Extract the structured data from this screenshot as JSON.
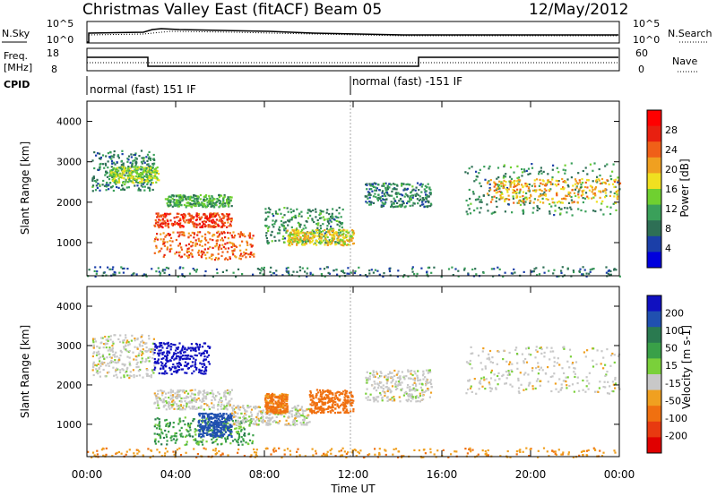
{
  "header": {
    "station": "Christmas Valley East (fitACF)",
    "beam": "Beam 05",
    "date": "12/May/2012"
  },
  "top_panels": {
    "nsky_label": "N.Sky",
    "nsearch_label": "N.Search",
    "noise_ticks": [
      "10^5",
      "10^0"
    ],
    "freq_label_line1": "Freq.",
    "freq_label_line2": "[MHz]",
    "freq_ticks": [
      "18",
      "8"
    ],
    "nave_label": "Nave",
    "nave_ticks": [
      "60",
      "0"
    ],
    "cpid_label": "CPID",
    "cpid_segments": [
      "normal (fast) 151 IF",
      "normal (fast) -151 IF"
    ]
  },
  "colorbars": {
    "power": {
      "label": "Power [dB]",
      "ticks": [
        "28",
        "24",
        "20",
        "16",
        "12",
        "8",
        "4"
      ],
      "colors": [
        "#0000dd",
        "#1b3fa8",
        "#2e6f55",
        "#3aa05a",
        "#6fd030",
        "#f0e020",
        "#f0a020",
        "#f06018",
        "#e82010",
        "#ff0000"
      ]
    },
    "velocity": {
      "label": "Velocity [m s-1]",
      "ticks": [
        "200",
        "100",
        "50",
        "15",
        "-15",
        "-50",
        "-100",
        "-200"
      ],
      "colors": [
        "#1010c0",
        "#2050b0",
        "#2a7a50",
        "#39a048",
        "#7ad03a",
        "#c8c8c8",
        "#f0a020",
        "#f07010",
        "#e83a10",
        "#e00000"
      ]
    }
  },
  "chart_data": [
    {
      "type": "heatmap",
      "name": "power",
      "xlabel": "",
      "ylabel": "Slant Range [km]",
      "xlim": [
        0,
        24
      ],
      "ylim": [
        180,
        4500
      ],
      "yticks": [
        1000,
        2000,
        3000,
        4000
      ],
      "scatter_regions": [
        {
          "t": [
            0.2,
            3.0
          ],
          "r": [
            2300,
            3300
          ],
          "level": 9
        },
        {
          "t": [
            1.0,
            3.2
          ],
          "r": [
            2500,
            2900
          ],
          "level": 15
        },
        {
          "t": [
            3.0,
            6.5
          ],
          "r": [
            1400,
            1750
          ],
          "level": 26
        },
        {
          "t": [
            3.0,
            7.5
          ],
          "r": [
            600,
            1300
          ],
          "level": 24
        },
        {
          "t": [
            3.5,
            6.5
          ],
          "r": [
            1900,
            2200
          ],
          "level": 12
        },
        {
          "t": [
            8.0,
            11.5
          ],
          "r": [
            1000,
            1900
          ],
          "level": 10
        },
        {
          "t": [
            9.0,
            12.0
          ],
          "r": [
            950,
            1350
          ],
          "level": 18
        },
        {
          "t": [
            12.5,
            15.5
          ],
          "r": [
            1900,
            2500
          ],
          "level": 9
        },
        {
          "t": [
            17.0,
            24.0
          ],
          "r": [
            1700,
            3000
          ],
          "level": 10
        },
        {
          "t": [
            18.0,
            24.0
          ],
          "r": [
            2000,
            2600
          ],
          "level": 20
        },
        {
          "t": [
            0.0,
            24.0
          ],
          "r": [
            180,
            420
          ],
          "level": 8
        }
      ]
    },
    {
      "type": "heatmap",
      "name": "velocity",
      "xlabel": "Time UT",
      "ylabel": "Slant Range [km]",
      "xlim": [
        0,
        24
      ],
      "ylim": [
        180,
        4500
      ],
      "xticks": [
        "00:00",
        "04:00",
        "08:00",
        "12:00",
        "16:00",
        "20:00",
        "00:00"
      ],
      "yticks": [
        1000,
        2000,
        3000,
        4000
      ],
      "scatter_regions": [
        {
          "t": [
            0.2,
            3.0
          ],
          "r": [
            2200,
            3300
          ],
          "velocity": 0
        },
        {
          "t": [
            3.0,
            5.5
          ],
          "r": [
            2300,
            3100
          ],
          "velocity": 220
        },
        {
          "t": [
            3.0,
            6.5
          ],
          "r": [
            1400,
            1900
          ],
          "velocity": 0
        },
        {
          "t": [
            3.0,
            7.5
          ],
          "r": [
            500,
            1200
          ],
          "velocity": 40
        },
        {
          "t": [
            5.0,
            6.5
          ],
          "r": [
            700,
            1300
          ],
          "velocity": 120
        },
        {
          "t": [
            6.5,
            10.0
          ],
          "r": [
            1000,
            1500
          ],
          "velocity": 0
        },
        {
          "t": [
            8.0,
            9.0
          ],
          "r": [
            1300,
            1800
          ],
          "velocity": -60
        },
        {
          "t": [
            10.0,
            12.0
          ],
          "r": [
            1300,
            1900
          ],
          "velocity": -70
        },
        {
          "t": [
            12.5,
            15.5
          ],
          "r": [
            1600,
            2400
          ],
          "velocity": 0
        },
        {
          "t": [
            17.0,
            24.0
          ],
          "r": [
            1800,
            3000
          ],
          "velocity": 0
        },
        {
          "t": [
            0.0,
            24.0
          ],
          "r": [
            180,
            420
          ],
          "velocity": -40
        }
      ]
    }
  ]
}
